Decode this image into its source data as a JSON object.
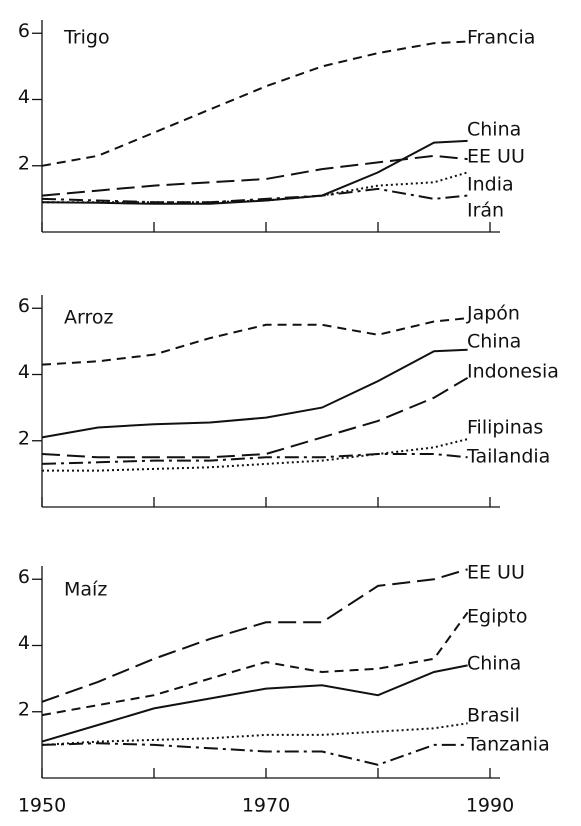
{
  "chart_data": [
    {
      "type": "line",
      "title": "Trigo",
      "x": [
        1950,
        1955,
        1960,
        1965,
        1970,
        1975,
        1980,
        1985,
        1988
      ],
      "xlim": [
        1950,
        1990
      ],
      "xticks": [
        1950,
        1970,
        1990
      ],
      "xminor": [
        1960,
        1980
      ],
      "ylim": [
        0,
        6.4
      ],
      "yticks": [
        2,
        4,
        6
      ],
      "series": [
        {
          "name": "Francia",
          "color": "#111111",
          "linestyle": "dashed",
          "values": [
            2.0,
            2.3,
            3.0,
            3.7,
            4.4,
            5.0,
            5.4,
            5.7,
            5.75
          ]
        },
        {
          "name": "China",
          "color": "#111111",
          "linestyle": "solid",
          "values": [
            0.9,
            0.88,
            0.85,
            0.85,
            0.95,
            1.1,
            1.8,
            2.7,
            2.75
          ]
        },
        {
          "name": "EE UU",
          "color": "#111111",
          "linestyle": "longdash",
          "values": [
            1.1,
            1.25,
            1.4,
            1.5,
            1.6,
            1.9,
            2.1,
            2.3,
            2.2
          ]
        },
        {
          "name": "India",
          "color": "#111111",
          "linestyle": "dotted",
          "values": [
            0.9,
            0.9,
            0.9,
            0.9,
            0.95,
            1.1,
            1.4,
            1.5,
            1.8
          ]
        },
        {
          "name": "Irán",
          "color": "#111111",
          "linestyle": "dashdot",
          "values": [
            1.0,
            0.95,
            0.9,
            0.9,
            1.0,
            1.1,
            1.3,
            1.0,
            1.1
          ]
        }
      ]
    },
    {
      "type": "line",
      "title": "Arroz",
      "x": [
        1950,
        1955,
        1960,
        1965,
        1970,
        1975,
        1980,
        1985,
        1988
      ],
      "xlim": [
        1950,
        1990
      ],
      "xticks": [
        1950,
        1970,
        1990
      ],
      "xminor": [
        1960,
        1980
      ],
      "ylim": [
        0,
        6.4
      ],
      "yticks": [
        2,
        4,
        6
      ],
      "series": [
        {
          "name": "Japón",
          "color": "#111111",
          "linestyle": "dashed",
          "values": [
            4.3,
            4.4,
            4.6,
            5.1,
            5.5,
            5.5,
            5.2,
            5.6,
            5.7
          ]
        },
        {
          "name": "China",
          "color": "#111111",
          "linestyle": "solid",
          "values": [
            2.1,
            2.4,
            2.5,
            2.55,
            2.7,
            3.0,
            3.8,
            4.7,
            4.75
          ]
        },
        {
          "name": "Indonesia",
          "color": "#111111",
          "linestyle": "longdash",
          "values": [
            1.6,
            1.5,
            1.5,
            1.5,
            1.6,
            2.1,
            2.6,
            3.3,
            3.9
          ]
        },
        {
          "name": "Filipinas",
          "color": "#111111",
          "linestyle": "dotted",
          "values": [
            1.1,
            1.1,
            1.15,
            1.2,
            1.3,
            1.4,
            1.6,
            1.8,
            2.05
          ]
        },
        {
          "name": "Tailandia",
          "color": "#111111",
          "linestyle": "dashdot",
          "values": [
            1.3,
            1.35,
            1.4,
            1.4,
            1.5,
            1.5,
            1.6,
            1.6,
            1.5
          ]
        }
      ]
    },
    {
      "type": "line",
      "title": "Maíz",
      "x": [
        1950,
        1955,
        1960,
        1965,
        1970,
        1975,
        1980,
        1985,
        1988
      ],
      "xlim": [
        1950,
        1990
      ],
      "xticks": [
        1950,
        1970,
        1990
      ],
      "xminor": [
        1960,
        1980
      ],
      "ylim": [
        0,
        6.4
      ],
      "yticks": [
        2,
        4,
        6
      ],
      "series": [
        {
          "name": "EE UU",
          "color": "#111111",
          "linestyle": "longdash",
          "values": [
            2.3,
            2.9,
            3.6,
            4.2,
            4.7,
            4.7,
            5.8,
            6.0,
            6.3
          ]
        },
        {
          "name": "Egipto",
          "color": "#111111",
          "linestyle": "dashed",
          "values": [
            1.9,
            2.2,
            2.5,
            3.0,
            3.5,
            3.2,
            3.3,
            3.6,
            5.0
          ]
        },
        {
          "name": "China",
          "color": "#111111",
          "linestyle": "solid",
          "values": [
            1.1,
            1.6,
            2.1,
            2.4,
            2.7,
            2.8,
            2.5,
            3.2,
            3.4
          ]
        },
        {
          "name": "Brasil",
          "color": "#111111",
          "linestyle": "dotted",
          "values": [
            1.0,
            1.1,
            1.15,
            1.2,
            1.3,
            1.3,
            1.4,
            1.5,
            1.65
          ]
        },
        {
          "name": "Tanzania",
          "color": "#111111",
          "linestyle": "dashdot",
          "values": [
            1.0,
            1.05,
            1.0,
            0.9,
            0.8,
            0.8,
            0.4,
            1.0,
            1.0
          ]
        }
      ]
    }
  ]
}
